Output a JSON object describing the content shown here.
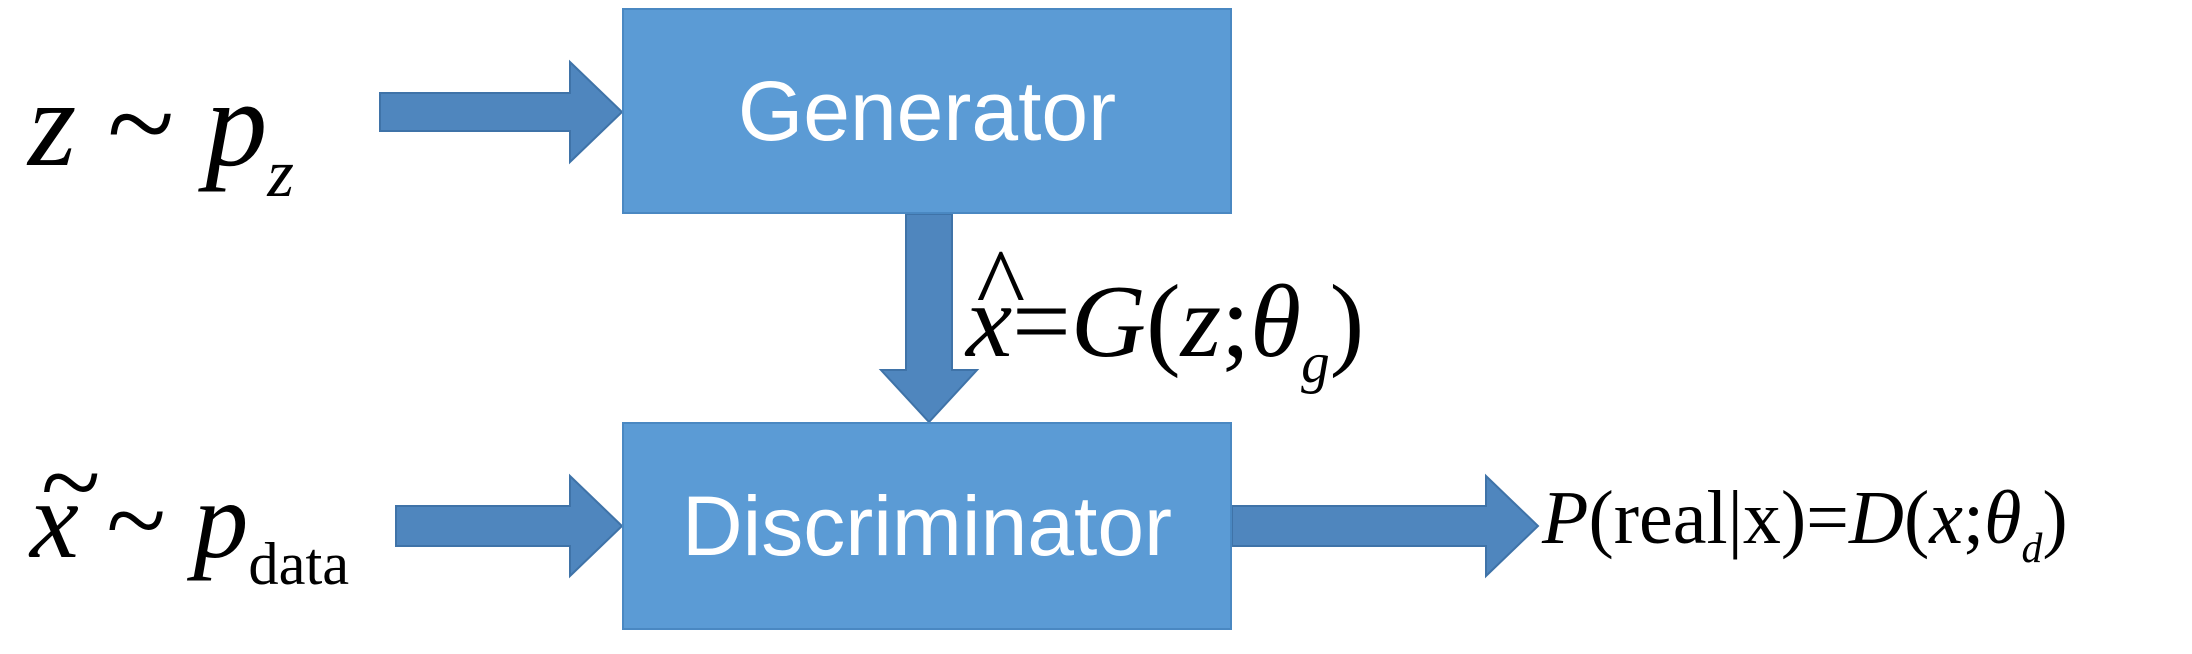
{
  "diagram": {
    "generator_label": "Generator",
    "discriminator_label": "Discriminator",
    "noise_input": {
      "variable": "z",
      "relation": "~",
      "distribution": "p",
      "subscript": "z"
    },
    "real_input": {
      "accent": "~",
      "variable": "x",
      "relation": "~",
      "distribution": "p",
      "subscript": "data"
    },
    "generator_output": {
      "accent": "^",
      "variable": "x",
      "equals": "=",
      "function": "G",
      "open": "(",
      "arg": "z",
      "sep": ";",
      "param": "θ",
      "param_sub": "g",
      "close": ")"
    },
    "discriminator_output": {
      "prob": "P",
      "open": "(",
      "text": "real|x",
      "close": ")",
      "equals": "=",
      "function": "D",
      "open2": "(",
      "arg": "x",
      "sep": ";",
      "param": "θ",
      "param_sub": "d",
      "close2": ")"
    },
    "colors": {
      "box_fill": "#5b9bd5",
      "arrow_fill": "#4f86be",
      "text": "#000000"
    }
  }
}
